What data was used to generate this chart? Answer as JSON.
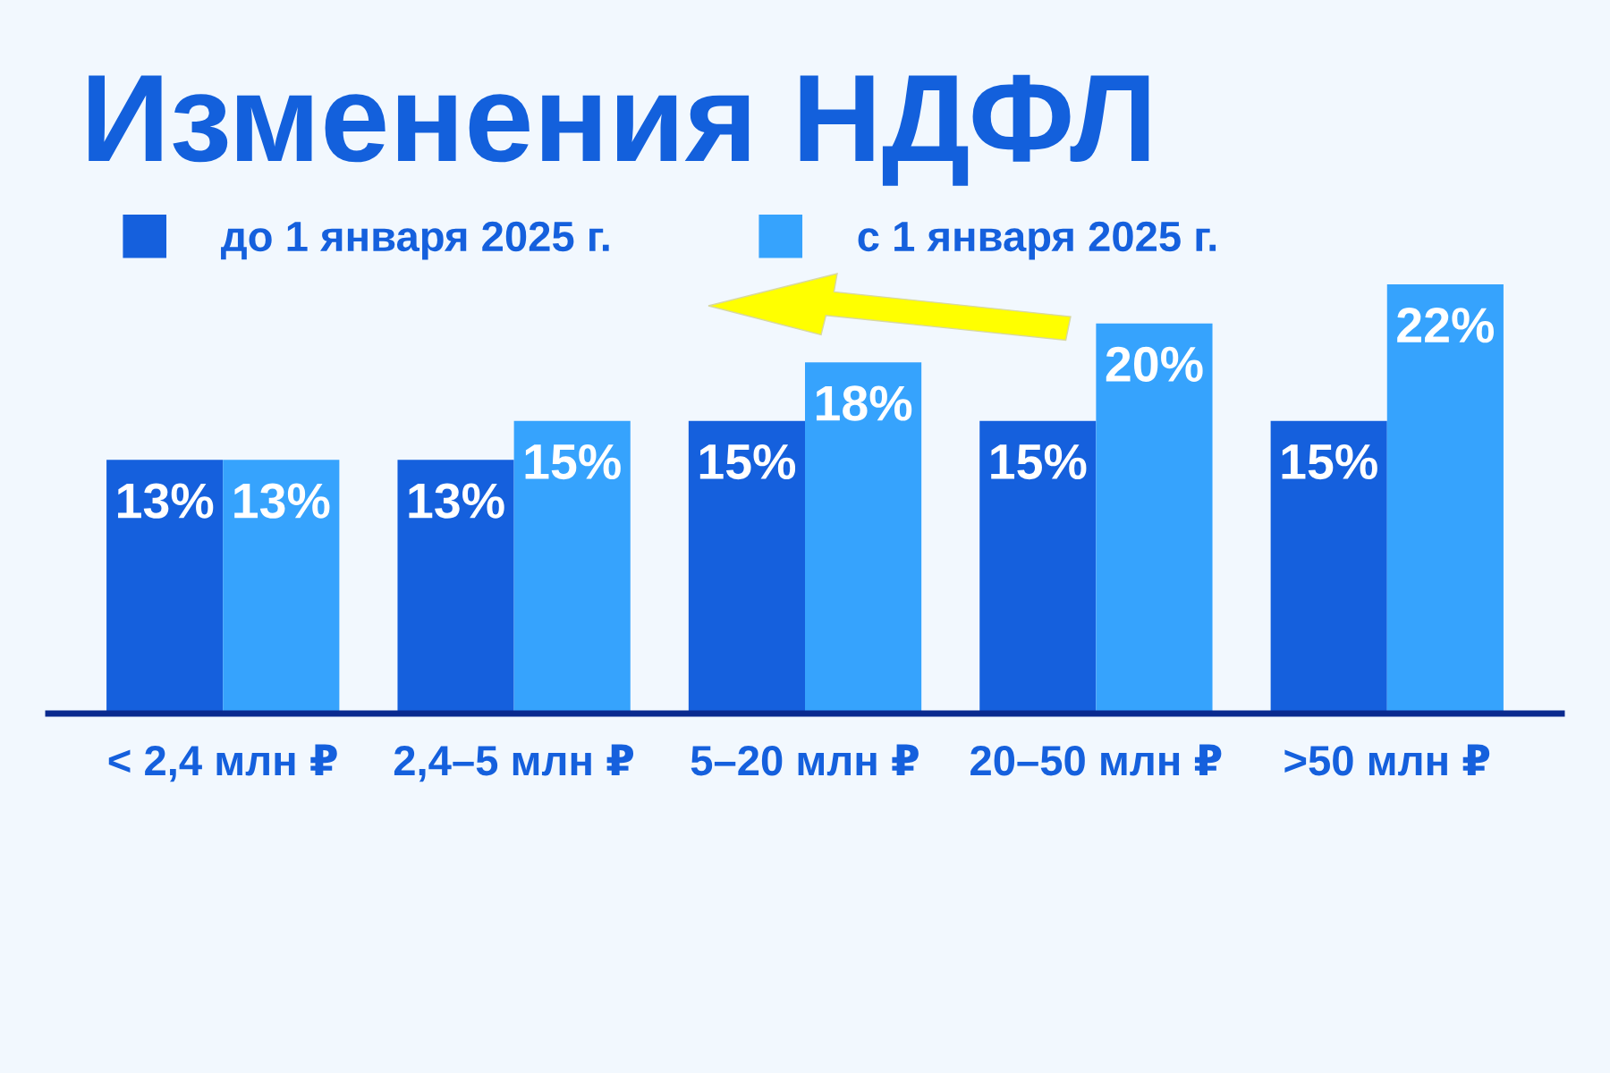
{
  "chart_data": {
    "type": "bar",
    "title": "Изменения НДФЛ",
    "categories": [
      "< 2,4 млн ₽",
      "2,4–5 млн ₽",
      "5–20 млн ₽",
      "20–50 млн ₽",
      ">50 млн ₽"
    ],
    "series": [
      {
        "name": "до 1 января 2025 г.",
        "color": "#1560dd",
        "values": [
          13,
          13,
          15,
          15,
          15
        ],
        "value_labels": [
          "13%",
          "13%",
          "15%",
          "15%",
          "15%"
        ]
      },
      {
        "name": "с 1 января 2025 г.",
        "color": "#36a3fd",
        "values": [
          13,
          15,
          18,
          20,
          22
        ],
        "value_labels": [
          "13%",
          "15%",
          "18%",
          "20%",
          "22%"
        ]
      }
    ],
    "legend": "top left",
    "grid": false,
    "tick_labels": "x"
  }
}
